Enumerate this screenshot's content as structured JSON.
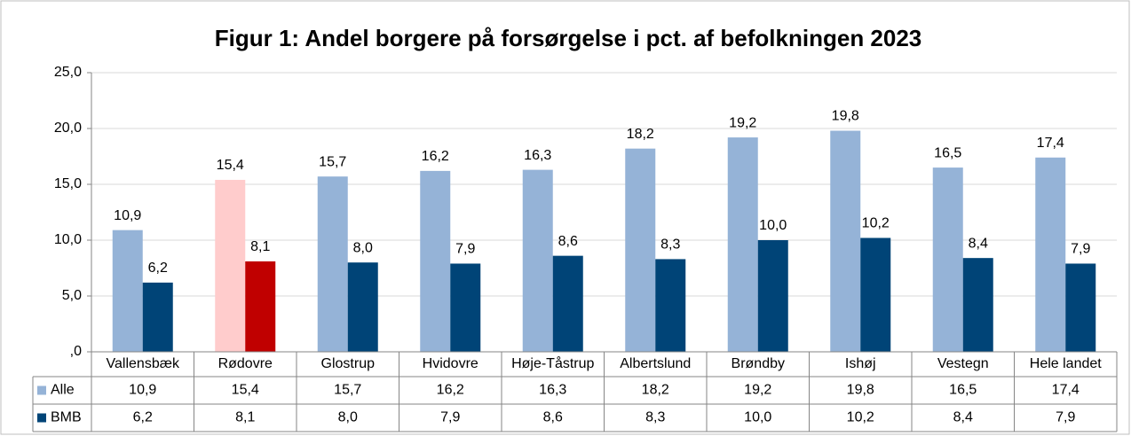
{
  "chart_data": {
    "type": "bar",
    "title": "Figur 1: Andel borgere på forsørgelse i pct. af befolkningen  2023",
    "categories": [
      "Vallensbæk",
      "Rødovre",
      "Glostrup",
      "Hvidovre",
      "Høje-Tåstrup",
      "Albertslund",
      "Brøndby",
      "Ishøj",
      "Vestegn",
      "Hele landet"
    ],
    "series": [
      {
        "name": "Alle",
        "color": "#95b3d7",
        "colors": [
          "#95b3d7",
          "#ffcccc",
          "#95b3d7",
          "#95b3d7",
          "#95b3d7",
          "#95b3d7",
          "#95b3d7",
          "#95b3d7",
          "#95b3d7",
          "#95b3d7"
        ],
        "values": [
          10.9,
          15.4,
          15.7,
          16.2,
          16.3,
          18.2,
          19.2,
          19.8,
          16.5,
          17.4
        ],
        "value_labels": [
          "10,9",
          "15,4",
          "15,7",
          "16,2",
          "16,3",
          "18,2",
          "19,2",
          "19,8",
          "16,5",
          "17,4"
        ]
      },
      {
        "name": "BMB",
        "color": "#004477",
        "colors": [
          "#004477",
          "#c00000",
          "#004477",
          "#004477",
          "#004477",
          "#004477",
          "#004477",
          "#004477",
          "#004477",
          "#004477"
        ],
        "values": [
          6.2,
          8.1,
          8.0,
          7.9,
          8.6,
          8.3,
          10.0,
          10.2,
          8.4,
          7.9
        ],
        "value_labels": [
          "6,2",
          "8,1",
          "8,0",
          "7,9",
          "8,6",
          "8,3",
          "10,0",
          "10,2",
          "8,4",
          "7,9"
        ]
      }
    ],
    "ylim": [
      0,
      25
    ],
    "yticks": [
      {
        "value": 0,
        "label": ",0"
      },
      {
        "value": 5,
        "label": "5,0"
      },
      {
        "value": 10,
        "label": "10,0"
      },
      {
        "value": 15,
        "label": "15,0"
      },
      {
        "value": 20,
        "label": "20,0"
      },
      {
        "value": 25,
        "label": "25,0"
      }
    ],
    "grid": true,
    "data_table": true
  }
}
